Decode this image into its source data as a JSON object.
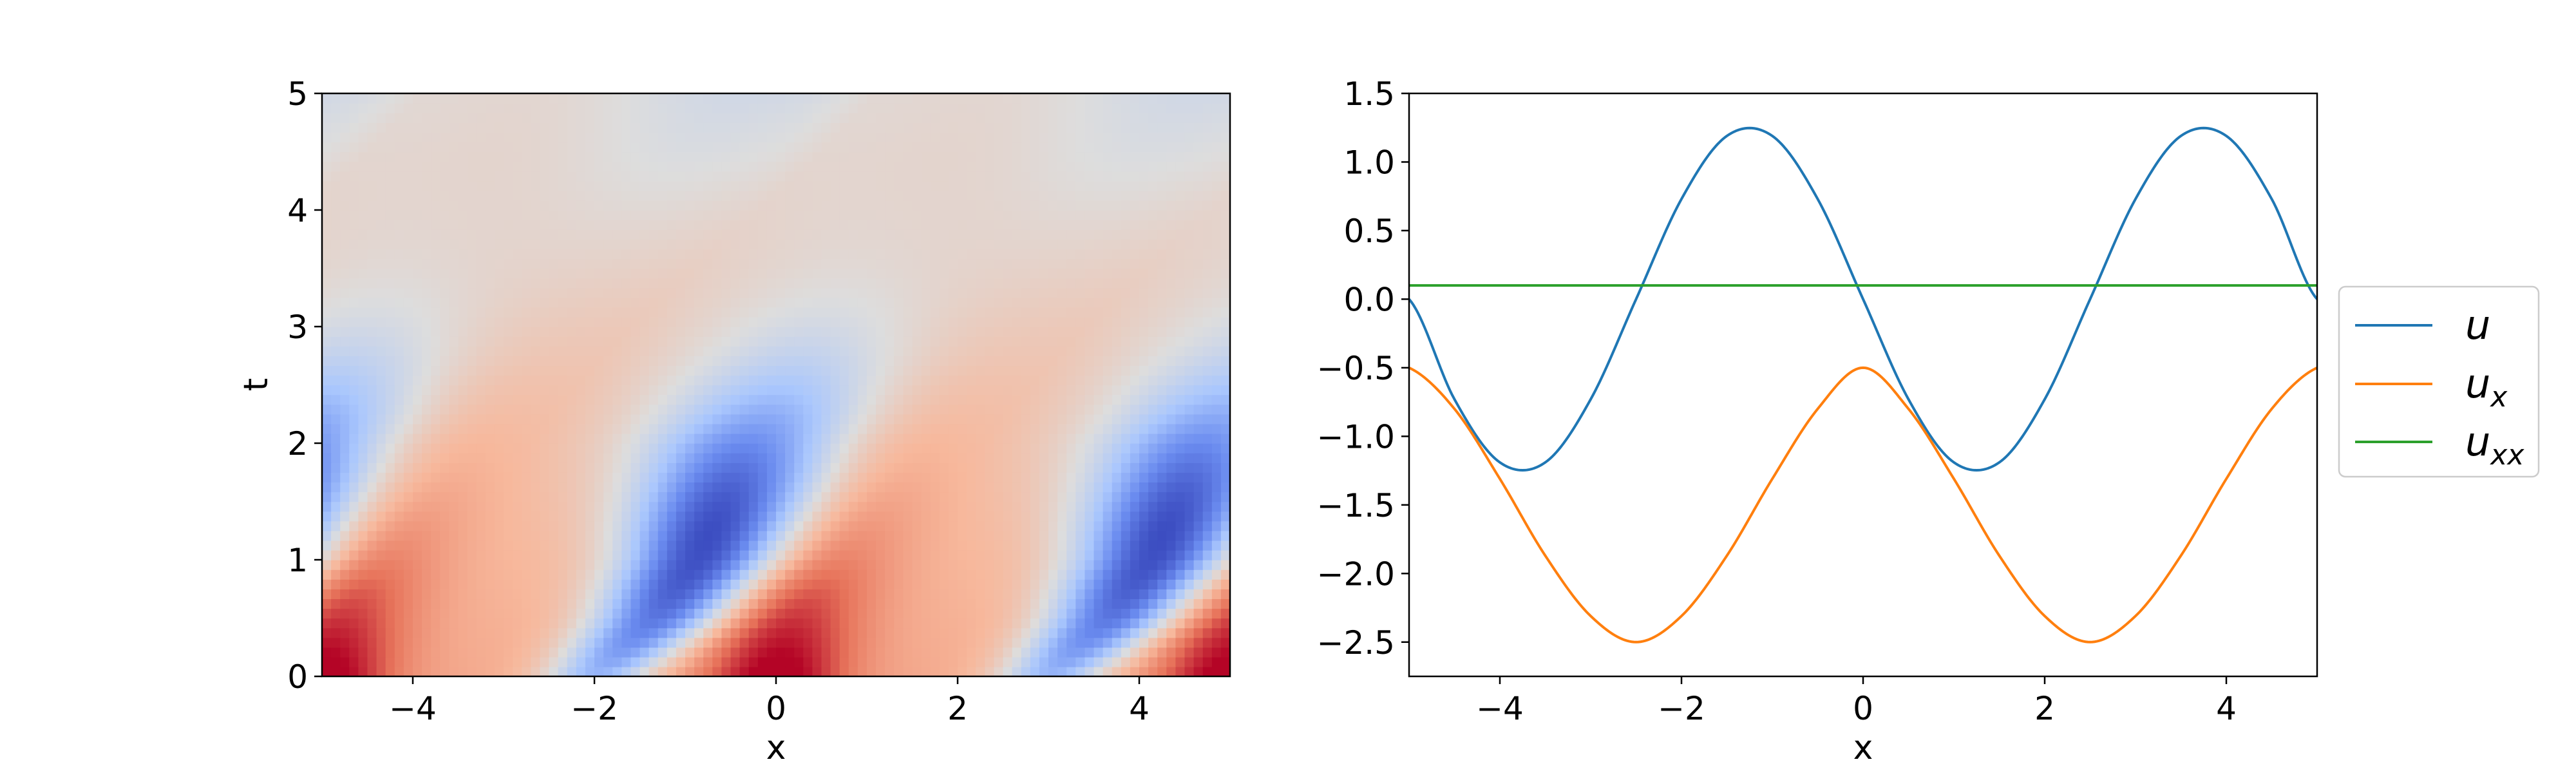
{
  "chart_data": [
    {
      "type": "heatmap",
      "colormap": "coolwarm",
      "colormap_stops": [
        "#3b4cc0",
        "#6a8bef",
        "#aac7fd",
        "#dddddd",
        "#f7b89c",
        "#e7745b",
        "#b40426"
      ],
      "xlabel": "x",
      "ylabel": "t",
      "xlim": [
        -5,
        5
      ],
      "ylim": [
        0,
        5
      ],
      "xticks": [
        -4,
        -2,
        0,
        2,
        4
      ],
      "yticks": [
        0,
        1,
        2,
        3,
        4,
        5
      ],
      "xtick_labels": [
        "−4",
        "−2",
        "0",
        "2",
        "4"
      ],
      "ytick_labels": [
        "0",
        "1",
        "2",
        "3",
        "4",
        "5"
      ],
      "period_x": 5,
      "grid": false,
      "field_description": "value in [0,1] (0 = blue, 1 = red); traveling wave pattern repeating every 5 units in x",
      "field_samples": {
        "t_values": [
          0,
          0.5,
          1,
          1.5,
          2,
          2.5,
          3,
          3.5,
          4,
          4.5,
          5
        ],
        "dark_red_band_x": [
          0.0,
          0.15,
          0.35,
          0.6,
          0.85,
          1.15,
          1.45,
          1.8,
          2.2,
          2.55,
          2.9
        ],
        "blue_band_x": [
          -2.0,
          -1.3,
          -0.8,
          -0.5,
          -0.2,
          0.3,
          0.9,
          1.6,
          2.3,
          3.0,
          3.6
        ]
      }
    },
    {
      "type": "line",
      "xlabel": "x",
      "ylabel": "",
      "xlim": [
        -5,
        5
      ],
      "ylim": [
        -2.75,
        1.5
      ],
      "xticks": [
        -4,
        -2,
        0,
        2,
        4
      ],
      "xtick_labels": [
        "−4",
        "−2",
        "0",
        "2",
        "4"
      ],
      "yticks": [
        -2.5,
        -2.0,
        -1.5,
        -1.0,
        -0.5,
        0.0,
        0.5,
        1.0,
        1.5
      ],
      "ytick_labels": [
        "−2.5",
        "−2.0",
        "−1.5",
        "−1.0",
        "−0.5",
        "0.0",
        "0.5",
        "1.0",
        "1.5"
      ],
      "grid": false,
      "legend_position": "outside-right",
      "x": [
        -5,
        -4.5,
        -4,
        -3.5,
        -3,
        -2.5,
        -2,
        -1.5,
        -1,
        -0.5,
        0,
        0.5,
        1,
        1.5,
        2,
        2.5,
        3,
        3.5,
        4,
        4.5,
        5
      ],
      "series": [
        {
          "name": "u",
          "color": "#1f77b4",
          "values": [
            0.0,
            -0.73,
            -1.19,
            -1.19,
            -0.73,
            0.0,
            0.73,
            1.19,
            1.19,
            0.73,
            0.0,
            -0.73,
            -1.19,
            -1.19,
            -0.73,
            0.0,
            0.73,
            1.19,
            1.19,
            0.73,
            0.0
          ]
        },
        {
          "name": "u_x",
          "color": "#ff7f0e",
          "values": [
            -0.5,
            -0.8,
            -1.31,
            -1.87,
            -2.31,
            -2.5,
            -2.31,
            -1.87,
            -1.31,
            -0.8,
            -0.5,
            -0.8,
            -1.31,
            -1.87,
            -2.31,
            -2.5,
            -2.31,
            -1.87,
            -1.31,
            -0.8,
            -0.5
          ]
        },
        {
          "name": "u_xx",
          "color": "#2ca02c",
          "values": [
            0.1,
            0.1,
            0.1,
            0.1,
            0.1,
            0.1,
            0.1,
            0.1,
            0.1,
            0.1,
            0.1,
            0.1,
            0.1,
            0.1,
            0.1,
            0.1,
            0.1,
            0.1,
            0.1,
            0.1,
            0.1
          ]
        }
      ],
      "legend": {
        "entries": [
          {
            "base": "u",
            "sub": ""
          },
          {
            "base": "u",
            "sub": "x"
          },
          {
            "base": "u",
            "sub": "xx"
          }
        ]
      }
    }
  ]
}
